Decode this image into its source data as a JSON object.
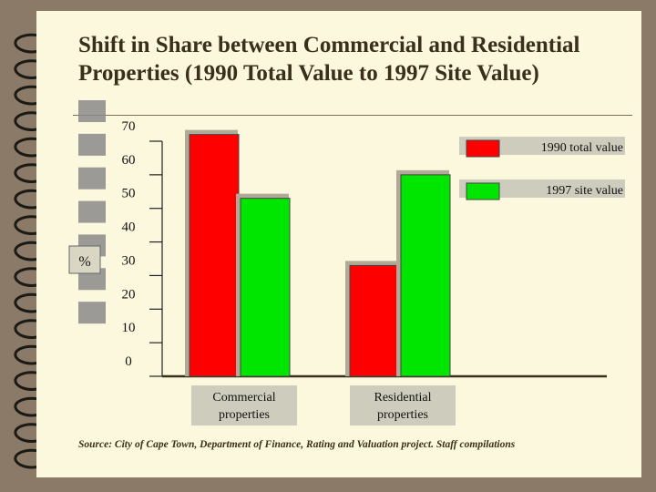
{
  "slide": {
    "title": "Shift in Share between Commercial and Residential Properties (1990 Total Value to 1997 Site Value)",
    "source": "Source: City of Cape Town, Department of Finance, Rating and Valuation project. Staff compilations",
    "colors": {
      "background": "#fbf8de",
      "frame": "#8b7a67"
    }
  },
  "chart_data": {
    "type": "bar",
    "ylabel": "%",
    "categories": [
      "Commercial properties",
      "Residential properties"
    ],
    "series": [
      {
        "name": "1990 total value",
        "color": "#ff0000",
        "values": [
          72,
          33
        ]
      },
      {
        "name": "1997 site value",
        "color": "#00e600",
        "values": [
          53,
          60
        ]
      }
    ],
    "ylim": [
      0,
      70
    ],
    "yticks": [
      "0",
      "10",
      "20",
      "30",
      "40",
      "50",
      "60",
      "70"
    ],
    "grid": false,
    "legend_position": "top-right"
  }
}
